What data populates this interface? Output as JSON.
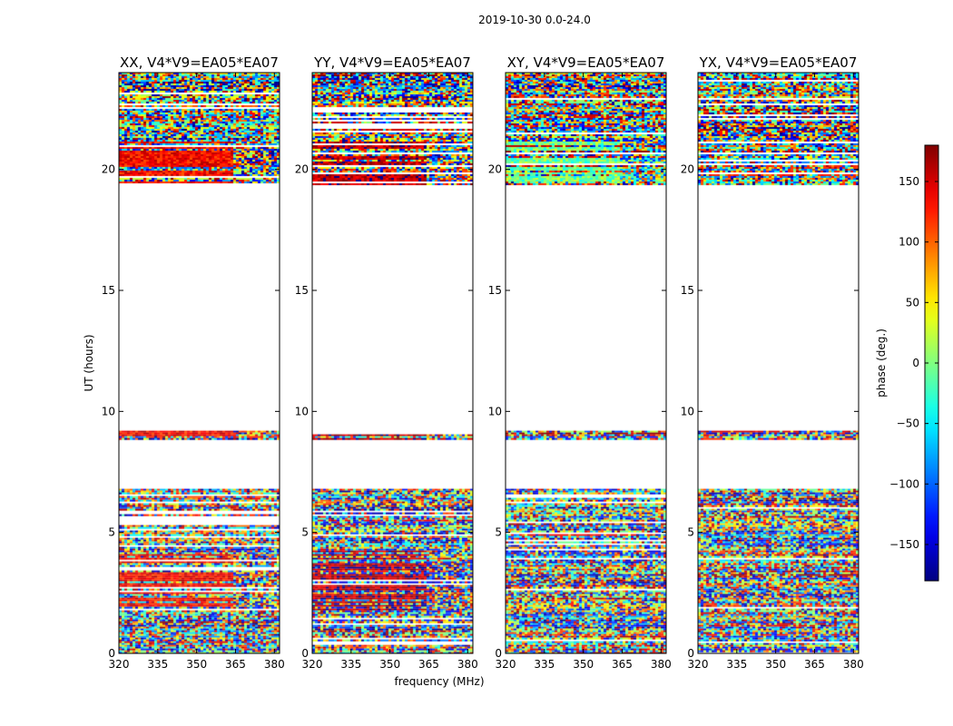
{
  "chart_data": {
    "type": "heatmap",
    "title": "2019-10-30 0.0-24.0",
    "xlabel": "frequency (MHz)",
    "ylabel": "UT (hours)",
    "xlim": [
      320,
      382
    ],
    "ylim": [
      0,
      24
    ],
    "xticks": [
      320,
      335,
      350,
      365,
      380
    ],
    "yticks": [
      0,
      5,
      10,
      15,
      20
    ],
    "colorbar": {
      "label": "phase (deg.)",
      "range": [
        -180,
        180
      ],
      "ticks": [
        150,
        100,
        50,
        0,
        -50,
        -100,
        -150
      ],
      "tick_labels": [
        "150",
        "100",
        "50",
        "0",
        "−50",
        "−100",
        "−150"
      ],
      "colormap": "jet"
    },
    "panels": [
      {
        "name": "XX",
        "title": "XX, V4*V9=EA05*EA07",
        "mode": "xx"
      },
      {
        "name": "YY",
        "title": "YY, V4*V9=EA05*EA07",
        "mode": "yy"
      },
      {
        "name": "XY",
        "title": "XY, V4*V9=EA05*EA07",
        "mode": "xy"
      },
      {
        "name": "YX",
        "title": "YX, V4*V9=EA05*EA07",
        "mode": "yx"
      }
    ],
    "data_ut_ranges": [
      [
        0.0,
        6.8
      ],
      [
        8.85,
        9.2
      ],
      [
        19.35,
        24.0
      ]
    ],
    "blank_ut_ranges": [
      [
        6.8,
        8.85
      ],
      [
        9.2,
        19.35
      ]
    ]
  }
}
